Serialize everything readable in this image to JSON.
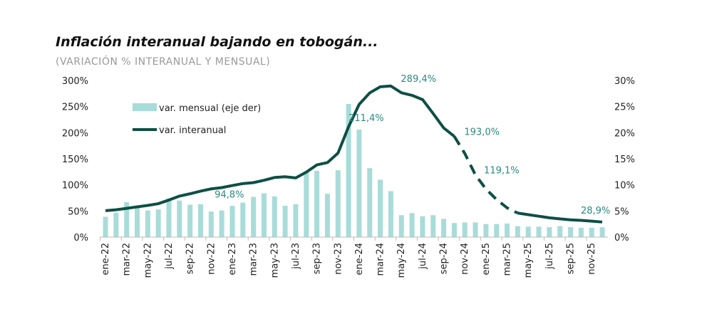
{
  "title": "Inflación interanual bajando en tobogán...",
  "subtitle": "(VARIACIÓN % INTERANUAL Y MENSUAL)",
  "colors": {
    "bars": "#a8dcd9",
    "line": "#0d4f45",
    "annotation": "#2a8a80"
  },
  "chart_data": {
    "type": "bar+line",
    "categories": [
      "ene-22",
      "feb-22",
      "mar-22",
      "abr-22",
      "may-22",
      "jun-22",
      "jul-22",
      "ago-22",
      "sep-22",
      "oct-22",
      "nov-22",
      "dic-22",
      "ene-23",
      "feb-23",
      "mar-23",
      "abr-23",
      "may-23",
      "jun-23",
      "jul-23",
      "ago-23",
      "sep-23",
      "oct-23",
      "nov-23",
      "dic-23",
      "ene-24",
      "feb-24",
      "mar-24",
      "abr-24",
      "may-24",
      "jun-24",
      "jul-24",
      "ago-24",
      "sep-24",
      "oct-24",
      "nov-24",
      "dic-24",
      "ene-25",
      "feb-25",
      "mar-25",
      "abr-25",
      "may-25",
      "jun-25",
      "jul-25",
      "ago-25",
      "sep-25",
      "oct-25",
      "nov-25",
      "dic-25"
    ],
    "xtick_labels": [
      "ene-22",
      "mar-22",
      "may-22",
      "jul-22",
      "sep-22",
      "nov-22",
      "ene-23",
      "mar-23",
      "may-23",
      "jul-23",
      "sep-23",
      "nov-23",
      "ene-24",
      "mar-24",
      "may-24",
      "jul-24",
      "sep-24",
      "nov-24",
      "ene-25",
      "mar-25",
      "may-25",
      "jul-25",
      "sep-25",
      "nov-25"
    ],
    "series": [
      {
        "name": "var. mensual (eje der)",
        "type": "bar",
        "axis": "right",
        "values": [
          3.9,
          4.7,
          6.7,
          6.0,
          5.1,
          5.3,
          7.4,
          7.0,
          6.2,
          6.3,
          4.9,
          5.1,
          6.0,
          6.6,
          7.7,
          8.4,
          7.8,
          6.0,
          6.3,
          12.4,
          12.7,
          8.3,
          12.8,
          25.5,
          20.6,
          13.2,
          11.0,
          8.8,
          4.2,
          4.6,
          4.0,
          4.2,
          3.5,
          2.7,
          2.8,
          2.8,
          2.5,
          2.5,
          2.6,
          2.1,
          2.0,
          2.0,
          1.9,
          2.1,
          1.9,
          1.8,
          1.8,
          1.9
        ]
      },
      {
        "name": "var. interanual",
        "type": "line",
        "axis": "left",
        "values": [
          50.7,
          52.3,
          55.1,
          58.0,
          60.7,
          64.0,
          71.0,
          78.5,
          83.0,
          88.0,
          92.4,
          94.8,
          98.8,
          102.5,
          104.3,
          108.8,
          114.2,
          115.6,
          113.4,
          124.4,
          138.3,
          142.7,
          160.9,
          211.4,
          254.2,
          276.2,
          287.9,
          289.4,
          276.4,
          271.5,
          263.4,
          236.7,
          209.0,
          193.0,
          160.0,
          119.1,
          92.0,
          72.0,
          56.0,
          46.0,
          43.0,
          40.0,
          37.0,
          35.0,
          33.0,
          32.0,
          30.5,
          28.9
        ],
        "dashed_from": "oct-24",
        "dashed_to": "abr-25"
      }
    ],
    "ylim_left": [
      0,
      300
    ],
    "yticks_left": [
      "0%",
      "50%",
      "100%",
      "150%",
      "200%",
      "250%",
      "300%"
    ],
    "ylim_right": [
      0,
      30
    ],
    "yticks_right": [
      "0%",
      "5%",
      "10%",
      "15%",
      "20%",
      "25%",
      "30%"
    ],
    "annotations": [
      {
        "category": "dic-22",
        "text": "94,8%"
      },
      {
        "category": "dic-23",
        "text": "211,4%"
      },
      {
        "category": "abr-24",
        "text": "289,4%"
      },
      {
        "category": "oct-24",
        "text": "193,0%"
      },
      {
        "category": "dic-24",
        "text": "119,1%"
      },
      {
        "category": "dic-25",
        "text": "28,9%"
      }
    ],
    "legend": "top-left",
    "grid": false
  }
}
